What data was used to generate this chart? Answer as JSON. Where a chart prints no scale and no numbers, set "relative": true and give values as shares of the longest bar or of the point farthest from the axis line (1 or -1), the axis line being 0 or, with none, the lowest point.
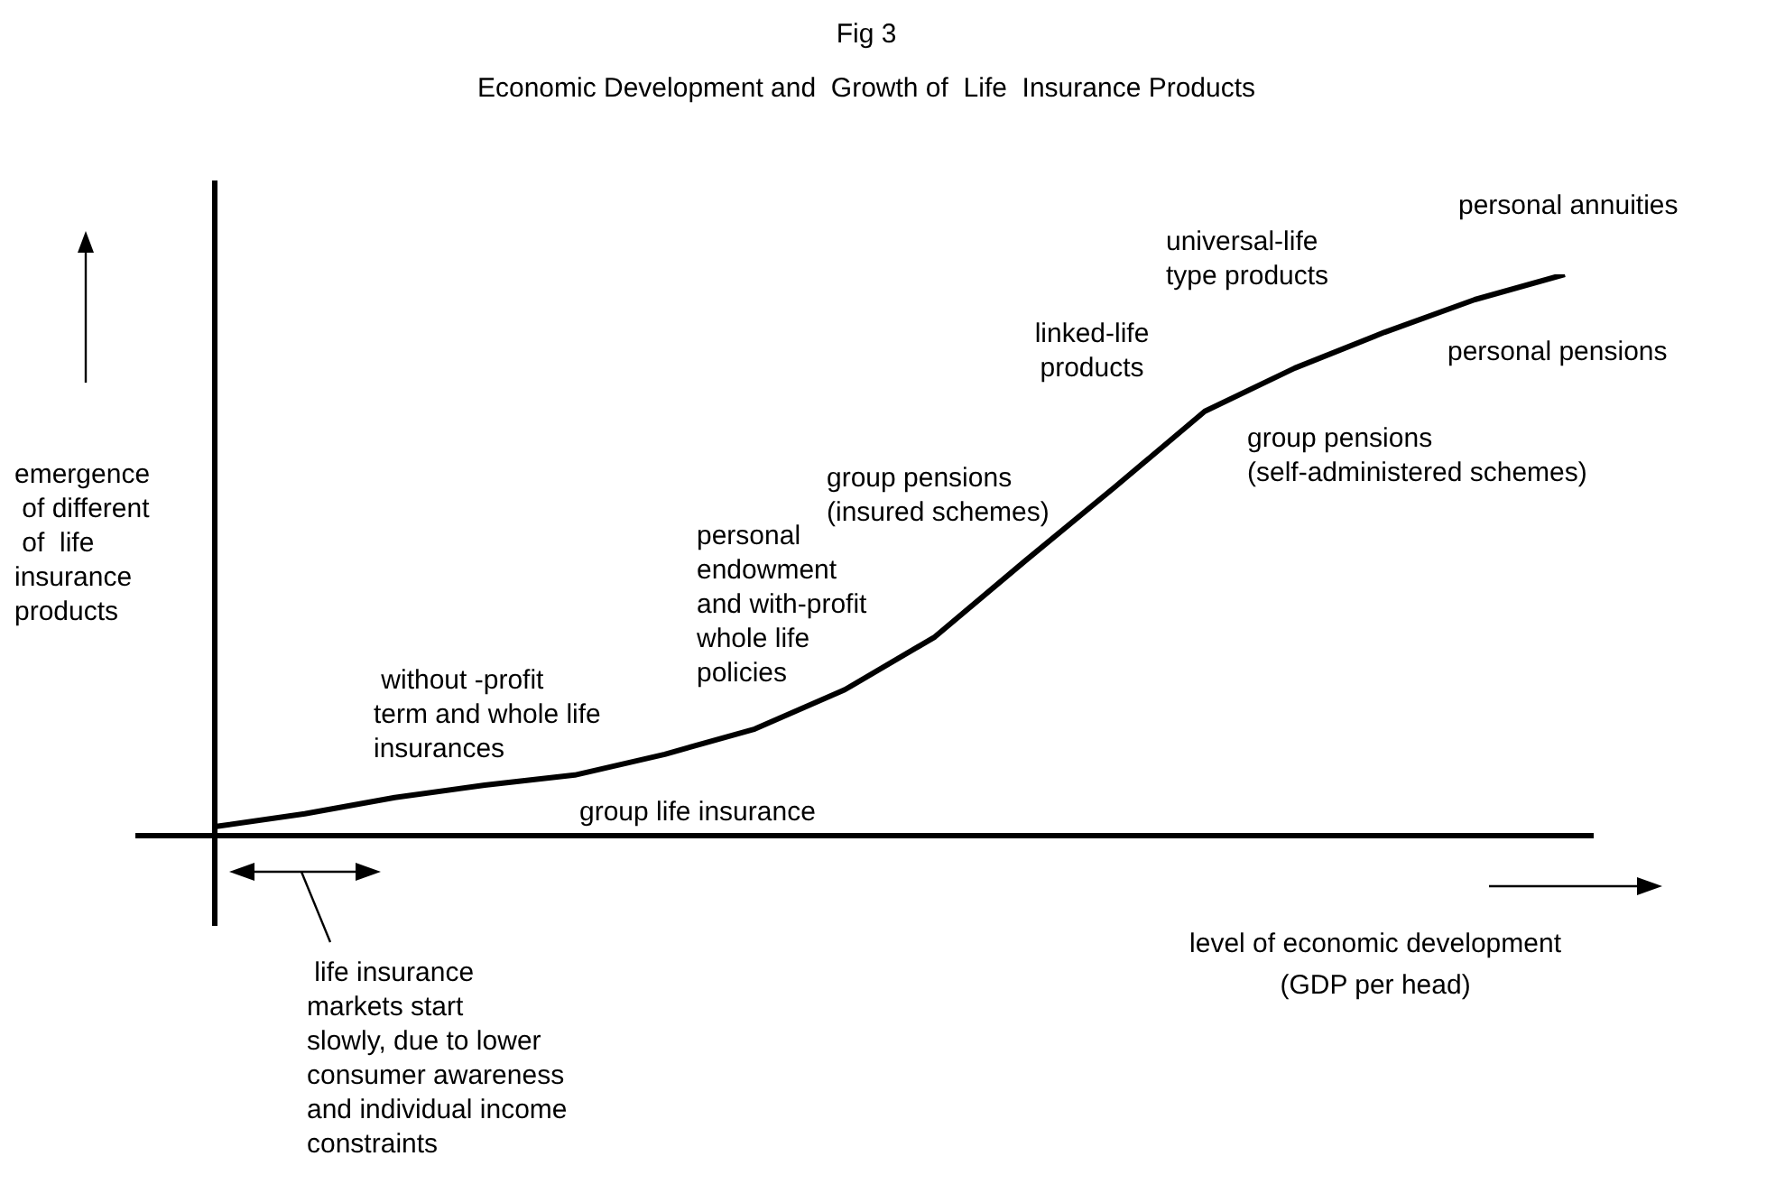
{
  "chart_data": {
    "type": "line",
    "title": "Fig 3",
    "subtitle": "Economic Development and  Growth of  Life  Insurance Products",
    "xlabel": "level of economic development\n(GDP per head)",
    "ylabel": "emergence\n of different\n of  life\ninsurance\nproducts",
    "relative": true,
    "legend": false,
    "marker": "none",
    "categories": [
      null,
      null,
      null,
      null,
      null,
      null,
      null,
      null,
      null,
      null,
      null,
      null,
      null,
      null,
      null,
      null
    ],
    "series": [
      {
        "color": "#000000",
        "values": [
          0.016,
          0.039,
          0.068,
          0.09,
          0.108,
          0.145,
          0.19,
          0.26,
          0.354,
          0.489,
          0.621,
          0.756,
          0.833,
          0.897,
          0.955,
          1
        ]
      }
    ],
    "annotations": [
      " without -profit\nterm and whole life\ninsurances",
      "group life insurance",
      "personal\nendowment\nand with-profit\nwhole life\npolicies",
      "group pensions\n(insured schemes)",
      "linked-life\nproducts",
      "universal-life\ntype products",
      "personal annuities",
      "personal pensions",
      "group pensions\n(self-administered schemes)",
      " life insurance\nmarkets start\nslowly, due to lower\nconsumer awareness\nand individual income\nconstraints"
    ]
  }
}
